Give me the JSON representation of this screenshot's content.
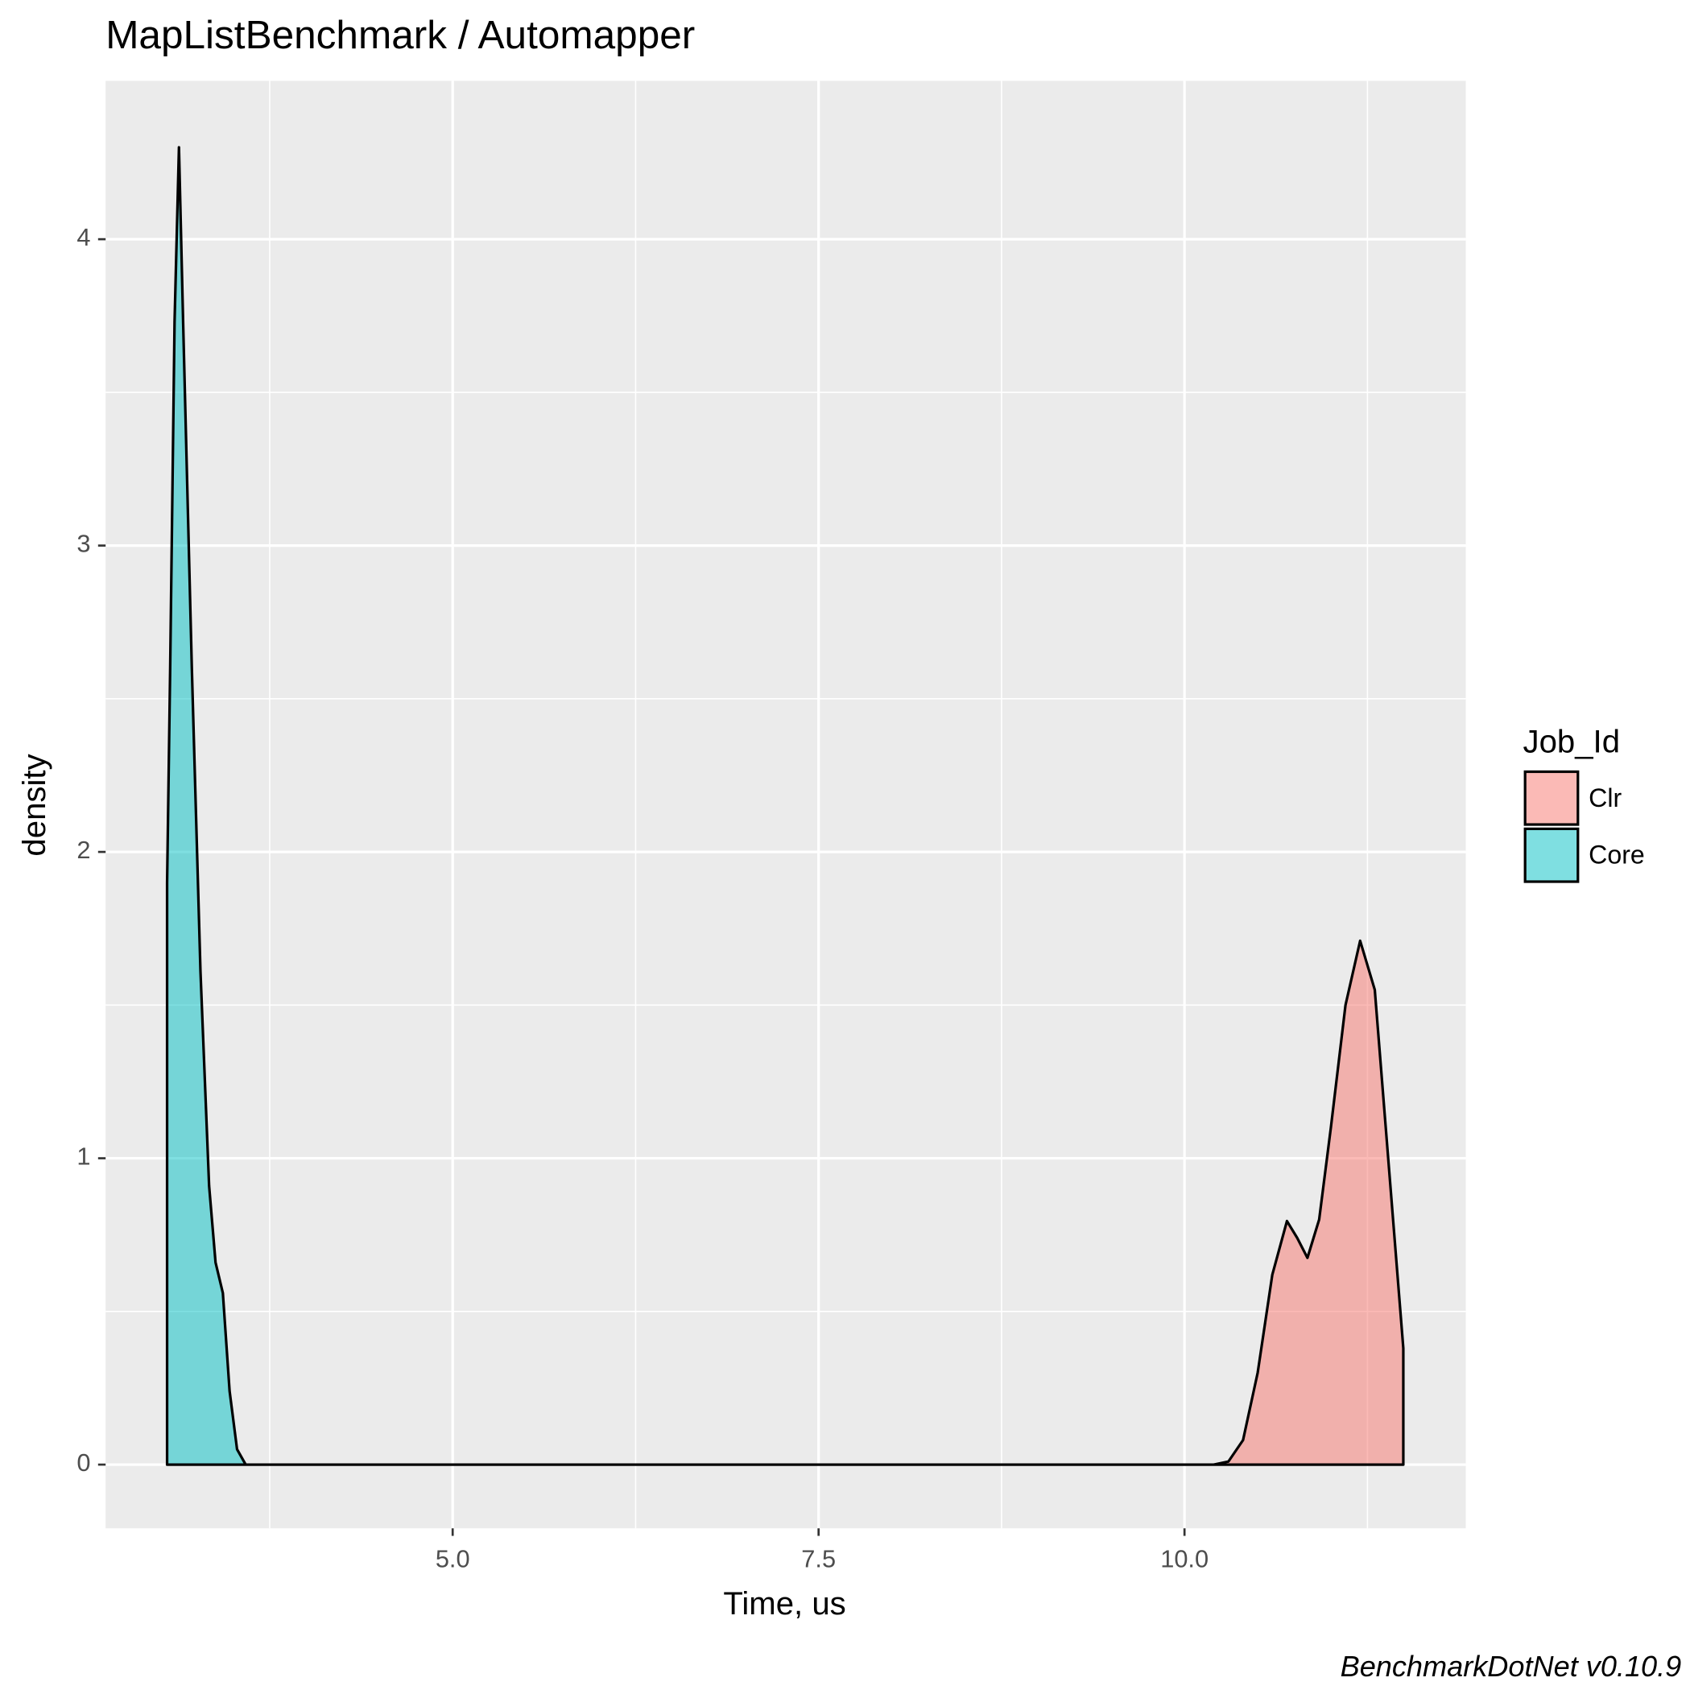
{
  "chart_data": {
    "type": "density",
    "title": "MapListBenchmark / Automapper",
    "x_label": "Time, us",
    "y_label": "density",
    "caption": "BenchmarkDotNet v0.10.9",
    "legend_title": "Job_Id",
    "legend_position": "right",
    "grid": true,
    "xlim": [
      2.629,
      11.922
    ],
    "ylim": [
      -0.208,
      4.517
    ],
    "xticks": [
      {
        "value": 5,
        "label": "5.0"
      },
      {
        "value": 7.5,
        "label": "7.5"
      },
      {
        "value": 10,
        "label": "10.0"
      }
    ],
    "yticks": [
      0,
      1,
      2,
      3,
      4
    ],
    "x_minor_grid": [
      3.75,
      6.25,
      8.75,
      11.25
    ],
    "y_minor_grid": [
      0.5,
      1.5,
      2.5,
      3.5
    ],
    "series": [
      {
        "name": "Clr",
        "color": "#F8766D",
        "x": [
          3.049,
          10.2,
          10.3,
          10.4,
          10.5,
          10.6,
          10.7,
          10.77,
          10.84,
          10.92,
          11.0,
          11.1,
          11.2,
          11.3,
          11.4,
          11.495,
          11.495
        ],
        "values": [
          0,
          0,
          0.01,
          0.08,
          0.3,
          0.62,
          0.795,
          0.74,
          0.675,
          0.8,
          1.1,
          1.5,
          1.71,
          1.55,
          0.95,
          0.38,
          0
        ]
      },
      {
        "name": "Core",
        "color": "#00BFC4",
        "x": [
          3.049,
          3.049,
          3.07,
          3.1,
          3.13,
          3.159,
          3.218,
          3.277,
          3.336,
          3.38,
          3.43,
          3.476,
          3.527,
          3.586,
          11.495
        ],
        "values": [
          0,
          1.9,
          2.6,
          3.73,
          4.3,
          3.72,
          2.6,
          1.61,
          0.91,
          0.66,
          0.56,
          0.24,
          0.05,
          0,
          0
        ]
      }
    ]
  }
}
